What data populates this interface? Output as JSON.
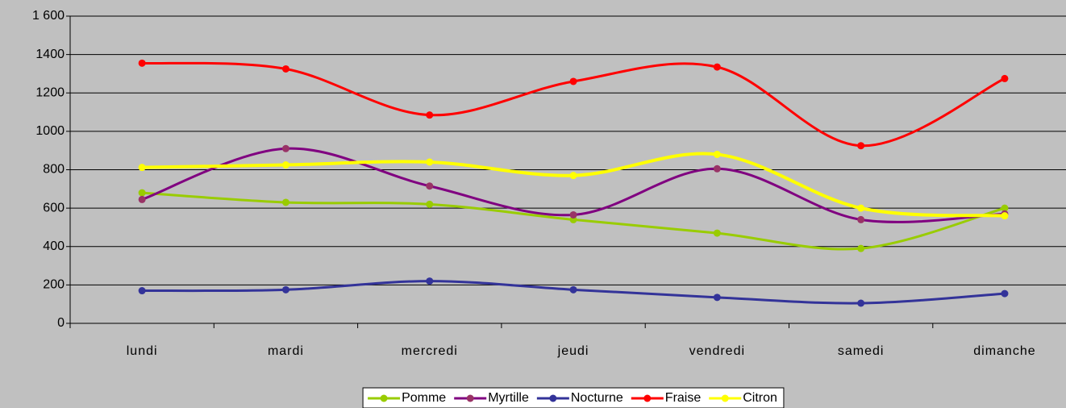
{
  "chart_data": {
    "type": "line",
    "categories": [
      "lundi",
      "mardi",
      "mercredi",
      "jeudi",
      "vendredi",
      "samedi",
      "dimanche"
    ],
    "series": [
      {
        "name": "Pomme",
        "color": "#99cc00",
        "marker_color": "#99cc00",
        "values": [
          680,
          630,
          620,
          540,
          470,
          390,
          600
        ]
      },
      {
        "name": "Myrtille",
        "color": "#800080",
        "marker_color": "#993366",
        "values": [
          645,
          910,
          715,
          565,
          805,
          540,
          570
        ]
      },
      {
        "name": "Nocturne",
        "color": "#333399",
        "marker_color": "#333399",
        "values": [
          170,
          175,
          220,
          175,
          135,
          105,
          155
        ]
      },
      {
        "name": "Fraise",
        "color": "#ff0000",
        "marker_color": "#ff0000",
        "values": [
          1355,
          1325,
          1085,
          1260,
          1335,
          925,
          1275
        ]
      },
      {
        "name": "Citron",
        "color": "#ffff00",
        "marker_color": "#ffff00",
        "values": [
          812,
          825,
          840,
          770,
          880,
          600,
          560
        ]
      }
    ],
    "ylim": [
      0,
      1600
    ],
    "yticks": [
      0,
      200,
      400,
      600,
      800,
      1000,
      1200,
      1400,
      {
        "value": 1600,
        "label": "1 600"
      }
    ],
    "grid": true,
    "smooth": true,
    "legend": "bottom"
  }
}
